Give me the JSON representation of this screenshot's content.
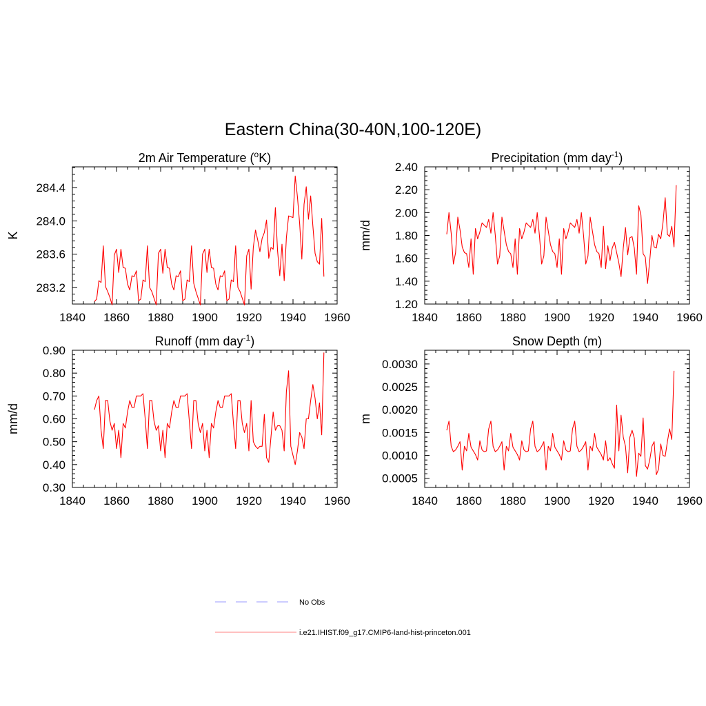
{
  "figure": {
    "title": "Eastern China(30-40N,100-120E)"
  },
  "chart_data": [
    {
      "type": "line",
      "title": "2m Air Temperature",
      "title_unit": "K",
      "title_unit_prefix": "o",
      "ylabel": "K",
      "xlim": [
        1840,
        1960
      ],
      "ylim": [
        283.0,
        284.65
      ],
      "x_ticks": [
        "1840",
        "1860",
        "1880",
        "1900",
        "1920",
        "1940",
        "1960"
      ],
      "y_ticks": [
        "283.2",
        "283.6",
        "284.0",
        "284.4"
      ],
      "series": [
        {
          "color": "#ff0000",
          "x_start": 1850,
          "values": [
            283.03,
            283.06,
            283.28,
            283.26,
            283.7,
            283.21,
            283.15,
            283.08,
            282.99,
            283.59,
            283.66,
            283.38,
            283.66,
            283.44,
            283.43,
            283.24,
            283.17,
            283.34,
            283.33,
            283.4,
            283.04,
            283.06,
            283.29,
            283.27,
            283.7,
            283.2,
            283.15,
            283.07,
            282.99,
            283.61,
            283.66,
            283.37,
            283.66,
            283.44,
            283.43,
            283.24,
            283.17,
            283.34,
            283.33,
            283.4,
            283.04,
            283.06,
            283.29,
            283.27,
            283.7,
            283.25,
            283.15,
            283.07,
            282.99,
            283.6,
            283.66,
            283.38,
            283.66,
            283.44,
            283.43,
            283.24,
            283.17,
            283.34,
            283.33,
            283.4,
            283.04,
            283.06,
            283.29,
            283.27,
            283.7,
            283.2,
            283.15,
            283.07,
            282.99,
            283.58,
            283.66,
            283.18,
            283.68,
            283.89,
            283.77,
            283.63,
            283.79,
            283.86,
            284.01,
            283.55,
            283.68,
            283.66,
            284.16,
            283.64,
            283.34,
            283.72,
            283.28,
            283.8,
            284.06,
            284.05,
            284.04,
            284.54,
            284.29,
            283.97,
            283.54,
            284.2,
            284.41,
            284.02,
            284.3,
            283.94,
            283.61,
            283.51,
            283.48,
            284.03,
            283.33
          ]
        }
      ]
    },
    {
      "type": "line",
      "title": "Precipitation",
      "title_unit": "mm day",
      "title_unit_sup": "-1",
      "ylabel": "mm/d",
      "xlim": [
        1840,
        1960
      ],
      "ylim": [
        1.2,
        2.4
      ],
      "x_ticks": [
        "1840",
        "1860",
        "1880",
        "1900",
        "1920",
        "1940",
        "1960"
      ],
      "y_ticks": [
        "1.20",
        "1.40",
        "1.60",
        "1.80",
        "2.00",
        "2.20",
        "2.40"
      ],
      "series": [
        {
          "color": "#ff0000",
          "x_start": 1850,
          "values": [
            1.81,
            2.0,
            1.82,
            1.55,
            1.65,
            1.96,
            1.85,
            1.7,
            1.65,
            1.64,
            1.52,
            1.77,
            1.46,
            1.86,
            1.77,
            1.83,
            1.91,
            1.89,
            1.87,
            1.94,
            1.82,
            2.0,
            1.8,
            1.55,
            1.62,
            1.96,
            1.84,
            1.72,
            1.66,
            1.64,
            1.52,
            1.77,
            1.46,
            1.86,
            1.77,
            1.83,
            1.91,
            1.89,
            1.87,
            1.94,
            1.82,
            2.0,
            1.8,
            1.55,
            1.62,
            1.96,
            1.84,
            1.72,
            1.66,
            1.64,
            1.52,
            1.77,
            1.46,
            1.86,
            1.77,
            1.83,
            1.91,
            1.89,
            1.87,
            1.94,
            1.82,
            2.0,
            1.8,
            1.55,
            1.62,
            1.96,
            1.84,
            1.72,
            1.66,
            1.64,
            1.52,
            1.88,
            1.51,
            1.71,
            1.58,
            1.69,
            1.74,
            1.65,
            1.56,
            1.44,
            1.69,
            1.87,
            1.63,
            1.78,
            1.79,
            1.69,
            1.46,
            2.06,
            1.98,
            1.64,
            1.61,
            1.38,
            1.58,
            1.8,
            1.7,
            1.69,
            1.81,
            1.77,
            1.91,
            2.13,
            1.81,
            1.79,
            1.88,
            1.7,
            2.24
          ]
        }
      ]
    },
    {
      "type": "line",
      "title": "Runoff",
      "title_unit": "mm day",
      "title_unit_sup": "-1",
      "ylabel": "mm/d",
      "xlim": [
        1840,
        1960
      ],
      "ylim": [
        0.3,
        0.9
      ],
      "x_ticks": [
        "1840",
        "1860",
        "1880",
        "1900",
        "1920",
        "1940",
        "1960"
      ],
      "y_ticks": [
        "0.30",
        "0.40",
        "0.50",
        "0.60",
        "0.70",
        "0.80",
        "0.90"
      ],
      "series": [
        {
          "color": "#ff0000",
          "x_start": 1850,
          "values": [
            0.64,
            0.68,
            0.7,
            0.55,
            0.47,
            0.68,
            0.68,
            0.59,
            0.55,
            0.58,
            0.47,
            0.55,
            0.43,
            0.58,
            0.56,
            0.63,
            0.68,
            0.65,
            0.65,
            0.7,
            0.7,
            0.7,
            0.71,
            0.6,
            0.47,
            0.68,
            0.68,
            0.59,
            0.55,
            0.57,
            0.46,
            0.55,
            0.43,
            0.58,
            0.56,
            0.63,
            0.68,
            0.65,
            0.65,
            0.7,
            0.7,
            0.7,
            0.71,
            0.59,
            0.47,
            0.68,
            0.68,
            0.58,
            0.54,
            0.58,
            0.46,
            0.55,
            0.43,
            0.58,
            0.56,
            0.63,
            0.68,
            0.65,
            0.65,
            0.7,
            0.7,
            0.7,
            0.71,
            0.58,
            0.47,
            0.68,
            0.68,
            0.58,
            0.54,
            0.58,
            0.46,
            0.68,
            0.5,
            0.48,
            0.47,
            0.48,
            0.48,
            0.62,
            0.43,
            0.41,
            0.52,
            0.63,
            0.55,
            0.57,
            0.57,
            0.55,
            0.46,
            0.72,
            0.81,
            0.48,
            0.44,
            0.4,
            0.46,
            0.54,
            0.52,
            0.47,
            0.6,
            0.6,
            0.68,
            0.75,
            0.69,
            0.6,
            0.67,
            0.53,
            0.89
          ]
        }
      ]
    },
    {
      "type": "line",
      "title": "Snow Depth (m)",
      "ylabel": "m",
      "xlim": [
        1840,
        1960
      ],
      "ylim": [
        0.0003,
        0.0033
      ],
      "x_ticks": [
        "1840",
        "1860",
        "1880",
        "1900",
        "1920",
        "1940",
        "1960"
      ],
      "y_ticks": [
        "0.0005",
        "0.0010",
        "0.0015",
        "0.0020",
        "0.0025",
        "0.0030"
      ],
      "series": [
        {
          "color": "#ff0000",
          "x_start": 1850,
          "values": [
            0.00155,
            0.00175,
            0.0012,
            0.00108,
            0.00112,
            0.0012,
            0.0013,
            0.00068,
            0.0012,
            0.0011,
            0.00148,
            0.00118,
            0.0011,
            0.00102,
            0.0009,
            0.00132,
            0.00112,
            0.00108,
            0.0011,
            0.00158,
            0.00175,
            0.0012,
            0.00108,
            0.00112,
            0.0012,
            0.0013,
            0.00068,
            0.0012,
            0.0011,
            0.00148,
            0.00118,
            0.0011,
            0.00102,
            0.0009,
            0.00132,
            0.00112,
            0.00108,
            0.0011,
            0.00158,
            0.00175,
            0.0012,
            0.00108,
            0.00112,
            0.0012,
            0.0013,
            0.00068,
            0.0012,
            0.0011,
            0.00148,
            0.00118,
            0.0011,
            0.00102,
            0.0009,
            0.00132,
            0.00112,
            0.00108,
            0.0011,
            0.00158,
            0.00175,
            0.0012,
            0.00108,
            0.00112,
            0.0012,
            0.0013,
            0.00068,
            0.0012,
            0.0011,
            0.00148,
            0.00118,
            0.0011,
            0.00102,
            0.0009,
            0.00132,
            0.00088,
            0.00095,
            0.00082,
            0.00072,
            0.0021,
            0.0011,
            0.00188,
            0.0014,
            0.0012,
            0.00062,
            0.0014,
            0.00155,
            0.00138,
            0.00054,
            0.00105,
            0.00098,
            0.00182,
            0.00078,
            0.0007,
            0.0009,
            0.0012,
            0.0013,
            0.00058,
            0.0007,
            0.00125,
            0.001,
            0.00098,
            0.0013,
            0.00158,
            0.00135,
            0.00285
          ]
        }
      ]
    }
  ],
  "legend": {
    "items": [
      {
        "label": "No Obs",
        "style": "dashed",
        "color": "#9999ff"
      },
      {
        "label": "i.e21.IHIST.f09_g17.CMIP6-land-hist-princeton.001",
        "style": "solid",
        "color": "#ff8080"
      }
    ]
  }
}
